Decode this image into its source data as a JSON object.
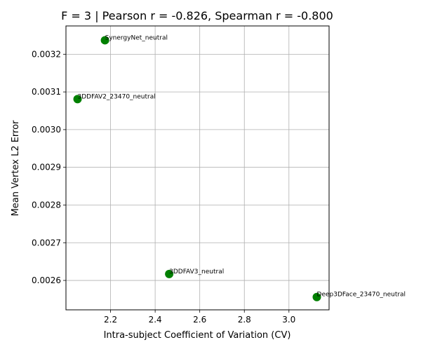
{
  "chart_data": {
    "type": "scatter",
    "title": "F = 3 | Pearson r = -0.826, Spearman r = -0.800",
    "xlabel": "Intra-subject Coefficient of Variation (CV)",
    "ylabel": "Mean Vertex L2 Error",
    "xlim": [
      2.0,
      3.18
    ],
    "ylim": [
      0.002522,
      0.003275
    ],
    "xticks": [
      "2.2",
      "2.4",
      "2.6",
      "2.8",
      "3.0"
    ],
    "yticks": [
      "0.0026",
      "0.0027",
      "0.0028",
      "0.0029",
      "0.0030",
      "0.0031",
      "0.0032"
    ],
    "grid": true,
    "points": [
      {
        "label": "SynergyNet_neutral",
        "x": 2.175,
        "y": 0.003237
      },
      {
        "label": "3DDFAV2_23470_neutral",
        "x": 2.052,
        "y": 0.003081
      },
      {
        "label": "3DDFAV3_neutral",
        "x": 2.463,
        "y": 0.002617
      },
      {
        "label": "Deep3DFace_23470_neutral",
        "x": 3.125,
        "y": 0.002556
      }
    ],
    "marker_color": "#008000"
  }
}
